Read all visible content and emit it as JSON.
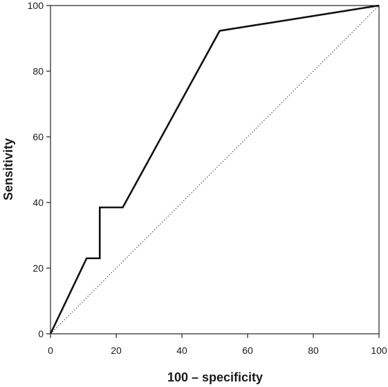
{
  "chart_data": {
    "type": "line",
    "title": "",
    "xlabel": "100 – specificity",
    "ylabel": "Sensitivity",
    "xlim": [
      0,
      100
    ],
    "ylim": [
      0,
      100
    ],
    "xticks": [
      "0",
      "20",
      "40",
      "60",
      "80",
      "100"
    ],
    "yticks": [
      "0",
      "20",
      "40",
      "60",
      "80",
      "100"
    ],
    "grid": false,
    "series": [
      {
        "line_style": "solid",
        "color": "#111111",
        "x": [
          0,
          11,
          15,
          15,
          22,
          51.5,
          100
        ],
        "y": [
          0,
          23,
          23,
          38.5,
          38.5,
          92.3,
          100
        ]
      },
      {
        "line_style": "dotted",
        "color": "#333333",
        "x": [
          0,
          100
        ],
        "y": [
          0,
          100
        ]
      }
    ]
  }
}
